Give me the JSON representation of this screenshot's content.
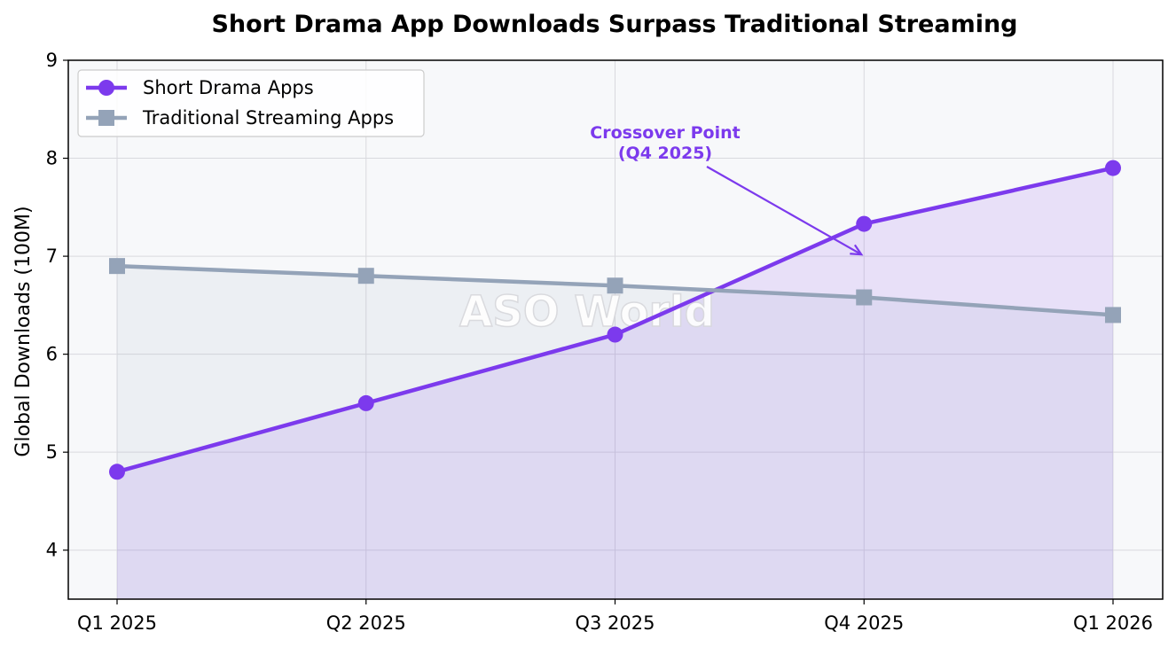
{
  "chart_data": {
    "type": "line",
    "title": "Short Drama App Downloads Surpass Traditional Streaming",
    "xlabel": "",
    "ylabel": "Global Downloads (100M)",
    "categories": [
      "Q1 2025",
      "Q2 2025",
      "Q3 2025",
      "Q4 2025",
      "Q1 2026"
    ],
    "ylim": [
      3.5,
      9
    ],
    "yticks": [
      4,
      5,
      6,
      7,
      8,
      9
    ],
    "grid": true,
    "legend_position": "top-left",
    "series": [
      {
        "name": "Short Drama Apps",
        "values": [
          4.8,
          5.5,
          6.2,
          7.33,
          7.9
        ],
        "color": "#7c3aed",
        "marker": "circle",
        "fill": true
      },
      {
        "name": "Traditional Streaming Apps",
        "values": [
          6.9,
          6.8,
          6.7,
          6.58,
          6.4
        ],
        "color": "#94a3b8",
        "marker": "square",
        "fill": true
      }
    ],
    "annotation": {
      "line1": "Crossover Point",
      "line2": "(Q4 2025)",
      "target_category": "Q4 2025",
      "target_value": 7.0,
      "color": "#7c3aed"
    },
    "watermark": "ASO World"
  }
}
